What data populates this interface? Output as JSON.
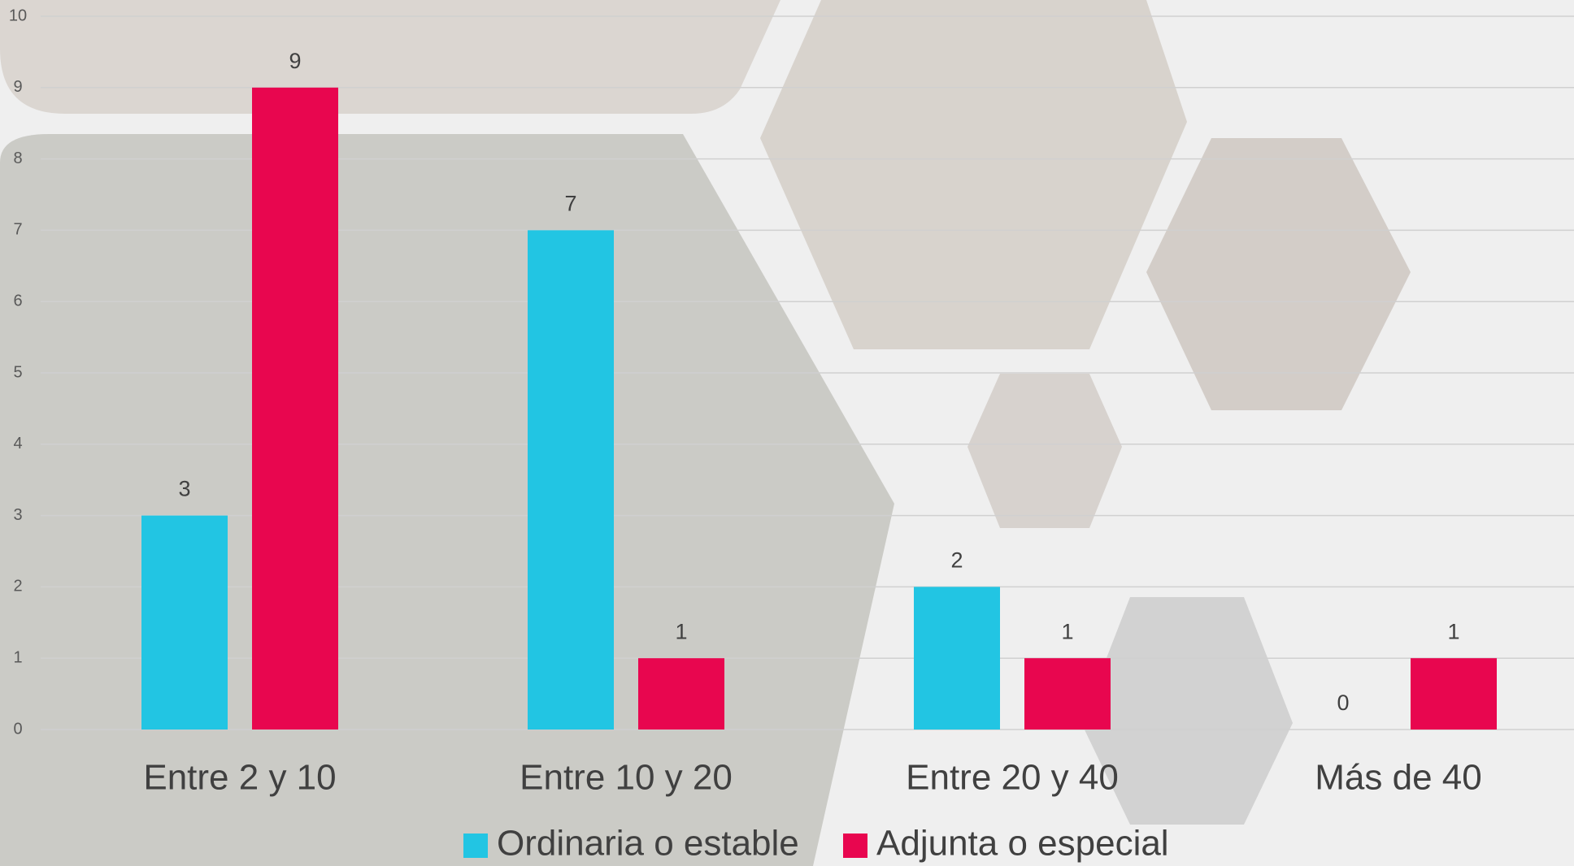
{
  "chart_data": {
    "type": "bar",
    "categories": [
      "Entre 2 y 10",
      "Entre 10 y 20",
      "Entre 20 y 40",
      "Más de 40"
    ],
    "series": [
      {
        "name": "Ordinaria o estable",
        "color": "#22c5e3",
        "values": [
          3,
          7,
          2,
          0
        ]
      },
      {
        "name": "Adjunta o especial",
        "color": "#e8064f",
        "values": [
          9,
          1,
          1,
          1
        ]
      }
    ],
    "ylim": [
      0,
      10
    ],
    "yticks": [
      0,
      1,
      2,
      3,
      4,
      5,
      6,
      7,
      8,
      9,
      10
    ],
    "grid": true,
    "legend": "bottom"
  }
}
